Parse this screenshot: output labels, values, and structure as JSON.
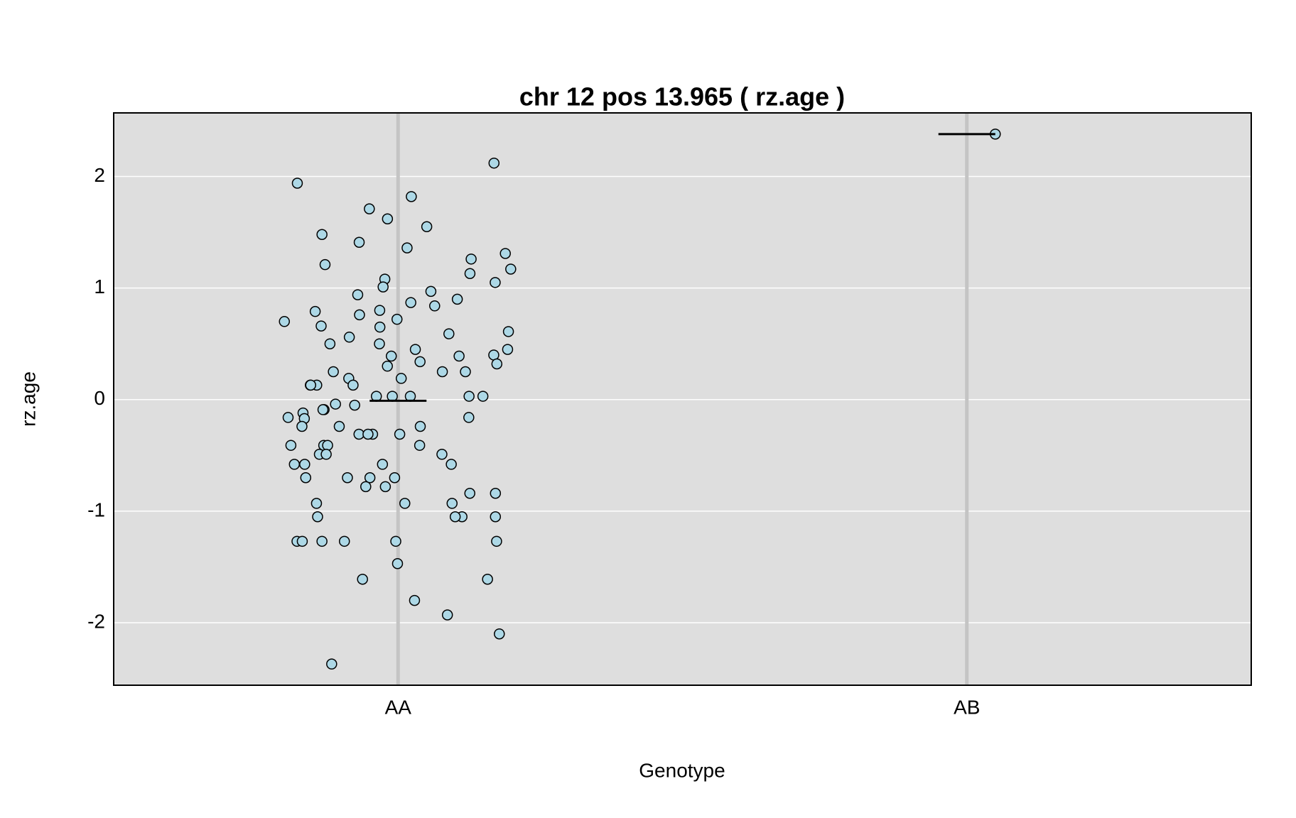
{
  "chart_data": {
    "type": "strip",
    "title": "chr 12 pos 13.965 ( rz.age )",
    "xlabel": "Genotype",
    "ylabel": "rz.age",
    "categories": [
      "AA",
      "AB"
    ],
    "values": [
      [
        2.12,
        1.94,
        1.82,
        1.71,
        1.62,
        1.55,
        1.48,
        1.41,
        1.36,
        1.31,
        1.26,
        1.21,
        1.17,
        1.13,
        1.08,
        1.05,
        1.01,
        0.97,
        0.94,
        0.9,
        0.87,
        0.84,
        0.8,
        0.79,
        0.76,
        0.72,
        0.7,
        0.66,
        0.65,
        0.61,
        0.59,
        0.56,
        0.5,
        0.5,
        0.45,
        0.45,
        0.4,
        0.39,
        0.39,
        0.34,
        0.32,
        0.3,
        0.25,
        0.25,
        0.25,
        0.19,
        0.19,
        0.13,
        0.13,
        0.13,
        0.13,
        0.03,
        0.03,
        0.03,
        0.03,
        0.03,
        -0.04,
        -0.05,
        -0.09,
        -0.09,
        -0.12,
        -0.16,
        -0.16,
        -0.17,
        -0.24,
        -0.24,
        -0.24,
        -0.31,
        -0.31,
        -0.31,
        -0.31,
        -0.41,
        -0.41,
        -0.41,
        -0.41,
        -0.49,
        -0.49,
        -0.49,
        -0.58,
        -0.58,
        -0.58,
        -0.58,
        -0.7,
        -0.7,
        -0.7,
        -0.7,
        -0.78,
        -0.78,
        -0.84,
        -0.84,
        -0.93,
        -0.93,
        -0.93,
        -1.05,
        -1.05,
        -1.05,
        -1.05,
        -1.27,
        -1.27,
        -1.27,
        -1.27,
        -1.27,
        -1.27,
        -1.47,
        -1.61,
        -1.61,
        -1.8,
        -1.93,
        -2.1,
        -2.37
      ],
      [
        2.38
      ]
    ],
    "means": [
      -0.01,
      2.38
    ],
    "color": "#add8e6",
    "mean_color": "#000000",
    "ylim": [
      -2.56,
      2.57
    ],
    "yticks": [
      -2,
      -1,
      0,
      1,
      2
    ],
    "grid": true
  }
}
